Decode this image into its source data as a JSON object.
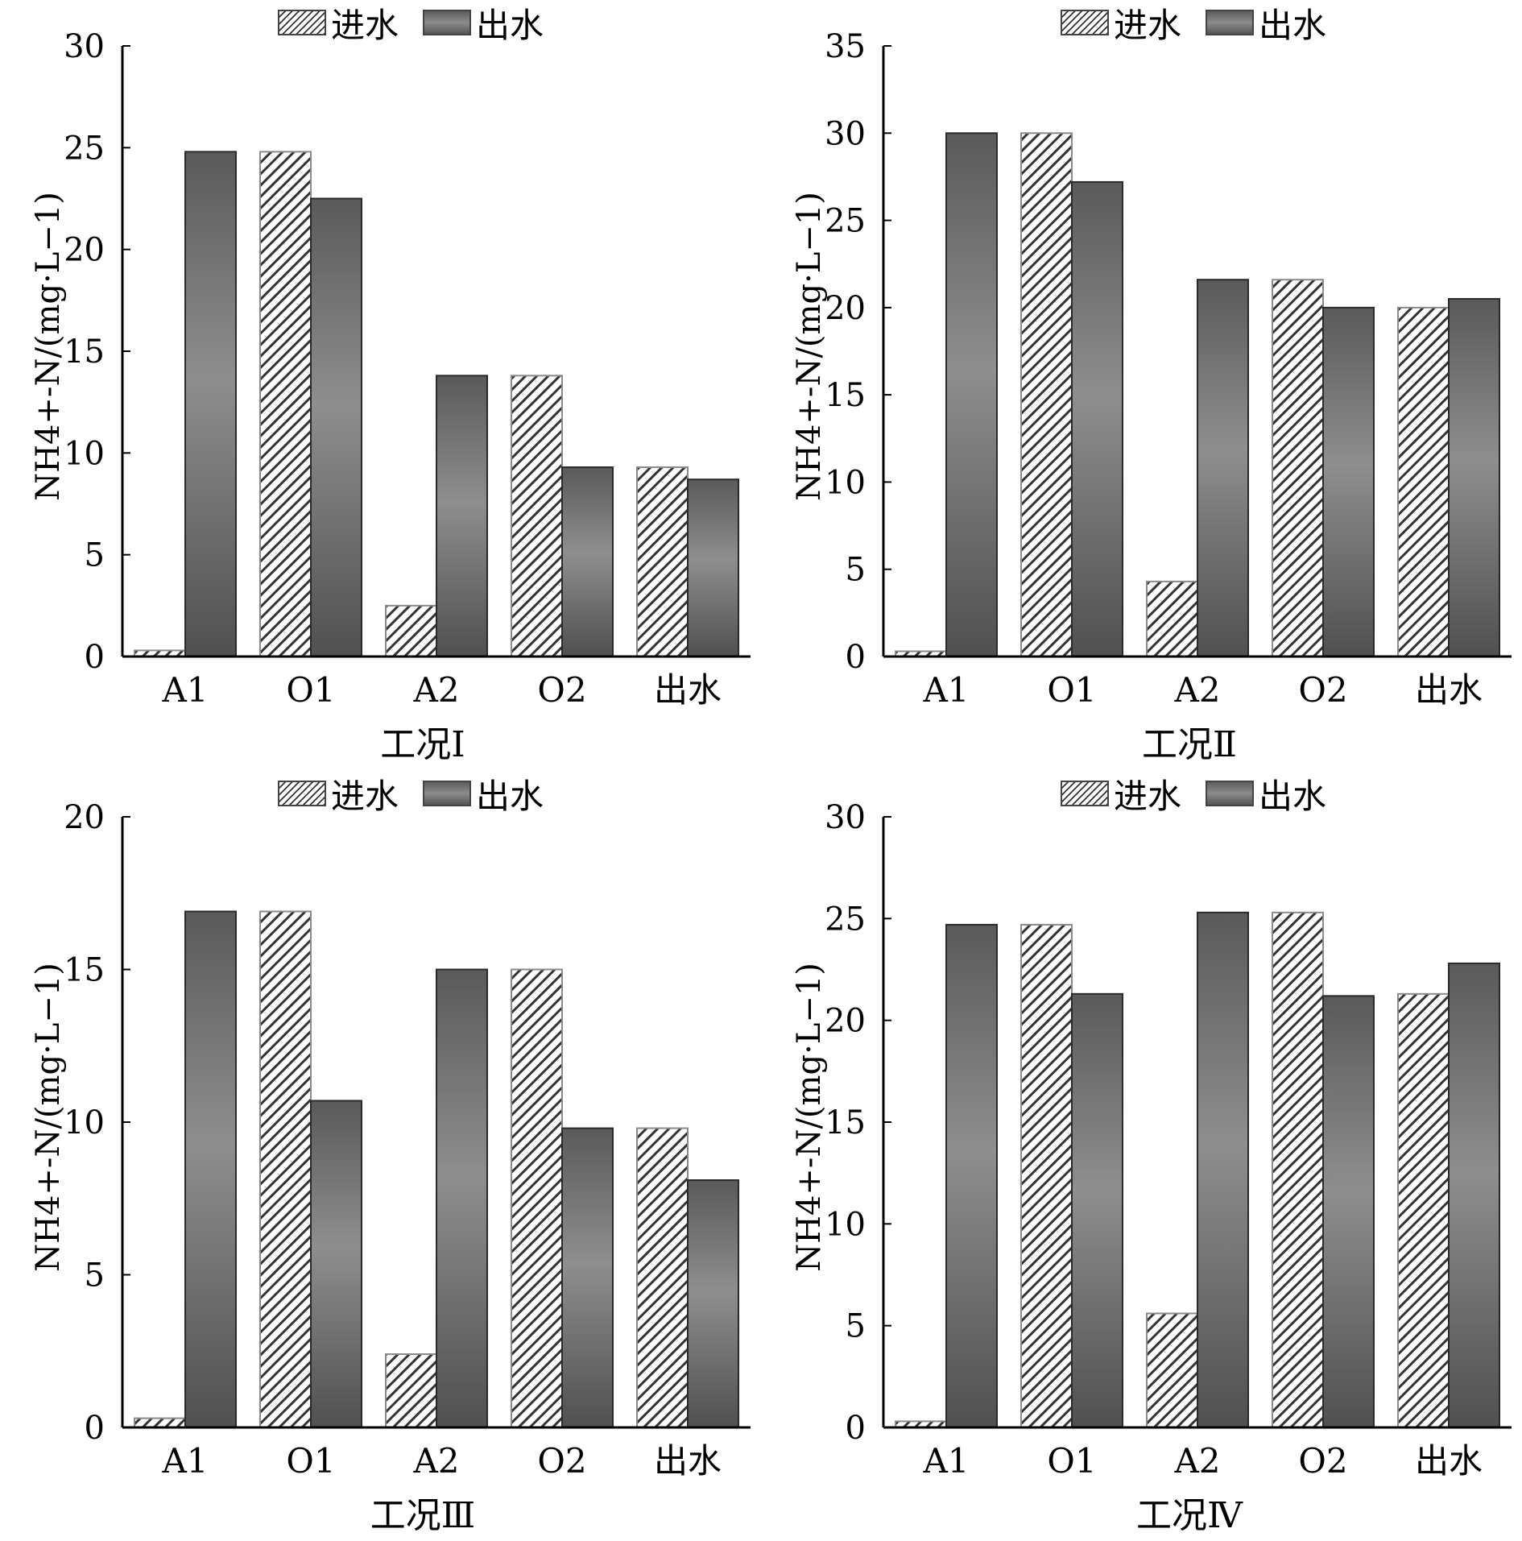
{
  "legend": {
    "inflow": "进水",
    "outflow": "出水"
  },
  "colors": {
    "outflow_bar": "#6f6f6f",
    "inflow_hatch": "#333333",
    "axis": "#000000"
  },
  "chart_data": [
    {
      "type": "bar",
      "title": "工况Ⅰ",
      "ylabel": "NH4+-N/(mg·L−1)",
      "categories": [
        "A1",
        "O1",
        "A2",
        "O2",
        "出水"
      ],
      "ylim": [
        0,
        30
      ],
      "yticks": [
        0,
        5,
        10,
        15,
        20,
        25,
        30
      ],
      "series": [
        {
          "name": "进水",
          "values": [
            0.3,
            24.8,
            2.5,
            13.8,
            9.3
          ]
        },
        {
          "name": "出水",
          "values": [
            24.8,
            22.5,
            13.8,
            9.3,
            8.7
          ]
        }
      ]
    },
    {
      "type": "bar",
      "title": "工况Ⅱ",
      "ylabel": "NH4+-N/(mg·L−1)",
      "categories": [
        "A1",
        "O1",
        "A2",
        "O2",
        "出水"
      ],
      "ylim": [
        0,
        35
      ],
      "yticks": [
        0,
        5,
        10,
        15,
        20,
        25,
        30,
        35
      ],
      "series": [
        {
          "name": "进水",
          "values": [
            0.3,
            30.0,
            4.3,
            21.6,
            20.0
          ]
        },
        {
          "name": "出水",
          "values": [
            30.0,
            27.2,
            21.6,
            20.0,
            20.5
          ]
        }
      ]
    },
    {
      "type": "bar",
      "title": "工况Ⅲ",
      "ylabel": "NH4+-N/(mg·L−1)",
      "categories": [
        "A1",
        "O1",
        "A2",
        "O2",
        "出水"
      ],
      "ylim": [
        0,
        20
      ],
      "yticks": [
        0,
        5,
        10,
        15,
        20
      ],
      "series": [
        {
          "name": "进水",
          "values": [
            0.3,
            16.9,
            2.4,
            15.0,
            9.8
          ]
        },
        {
          "name": "出水",
          "values": [
            16.9,
            10.7,
            15.0,
            9.8,
            8.1
          ]
        }
      ]
    },
    {
      "type": "bar",
      "title": "工况Ⅳ",
      "ylabel": "NH4+-N/(mg·L−1)",
      "categories": [
        "A1",
        "O1",
        "A2",
        "O2",
        "出水"
      ],
      "ylim": [
        0,
        30
      ],
      "yticks": [
        0,
        5,
        10,
        15,
        20,
        25,
        30
      ],
      "series": [
        {
          "name": "进水",
          "values": [
            0.3,
            24.7,
            5.6,
            25.3,
            21.3
          ]
        },
        {
          "name": "出水",
          "values": [
            24.7,
            21.3,
            25.3,
            21.2,
            22.8
          ]
        }
      ]
    }
  ]
}
